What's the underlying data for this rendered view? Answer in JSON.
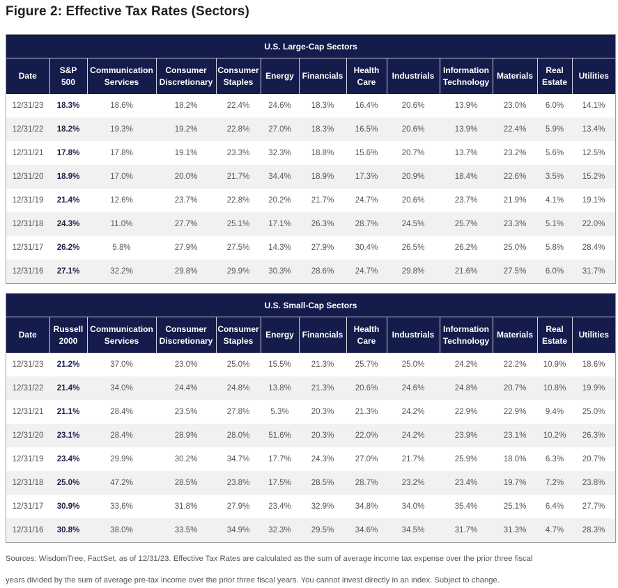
{
  "title": "Figure 2: Effective Tax Rates (Sectors)",
  "columns_common": [
    "Communication Services",
    "Consumer Discretionary",
    "Consumer Staples",
    "Energy",
    "Financials",
    "Health Care",
    "Industrials",
    "Information Technology",
    "Materials",
    "Real Estate",
    "Utilities"
  ],
  "large": {
    "caption": "U.S. Large-Cap Sectors",
    "headers": [
      [
        "Date"
      ],
      [
        "S&P",
        "500"
      ],
      [
        "Communication",
        "Services"
      ],
      [
        "Consumer",
        "Discretionary"
      ],
      [
        "Consumer",
        "Staples"
      ],
      [
        "Energy"
      ],
      [
        "Financials"
      ],
      [
        "Health",
        "Care"
      ],
      [
        "Industrials"
      ],
      [
        "Information",
        "Technology"
      ],
      [
        "Materials"
      ],
      [
        "Real",
        "Estate"
      ],
      [
        "Utilities"
      ]
    ],
    "rows": [
      [
        "12/31/23",
        "18.3%",
        "18.6%",
        "18.2%",
        "22.4%",
        "24.6%",
        "18.3%",
        "16.4%",
        "20.6%",
        "13.9%",
        "23.0%",
        "6.0%",
        "14.1%"
      ],
      [
        "12/31/22",
        "18.2%",
        "19.3%",
        "19.2%",
        "22.8%",
        "27.0%",
        "18.3%",
        "16.5%",
        "20.6%",
        "13.9%",
        "22.4%",
        "5.9%",
        "13.4%"
      ],
      [
        "12/31/21",
        "17.8%",
        "17.8%",
        "19.1%",
        "23.3%",
        "32.3%",
        "18.8%",
        "15.6%",
        "20.7%",
        "13.7%",
        "23.2%",
        "5.6%",
        "12.5%"
      ],
      [
        "12/31/20",
        "18.9%",
        "17.0%",
        "20.0%",
        "21.7%",
        "34.4%",
        "18.9%",
        "17.3%",
        "20.9%",
        "18.4%",
        "22.6%",
        "3.5%",
        "15.2%"
      ],
      [
        "12/31/19",
        "21.4%",
        "12.6%",
        "23.7%",
        "22.8%",
        "20.2%",
        "21.7%",
        "24.7%",
        "20.6%",
        "23.7%",
        "21.9%",
        "4.1%",
        "19.1%"
      ],
      [
        "12/31/18",
        "24.3%",
        "11.0%",
        "27.7%",
        "25.1%",
        "17.1%",
        "26.3%",
        "28.7%",
        "24.5%",
        "25.7%",
        "23.3%",
        "5.1%",
        "22.0%"
      ],
      [
        "12/31/17",
        "26.2%",
        "5.8%",
        "27.9%",
        "27.5%",
        "14.3%",
        "27.9%",
        "30.4%",
        "26.5%",
        "26.2%",
        "25.0%",
        "5.8%",
        "28.4%"
      ],
      [
        "12/31/16",
        "27.1%",
        "32.2%",
        "29.8%",
        "29.9%",
        "30.3%",
        "28.6%",
        "24.7%",
        "29.8%",
        "21.6%",
        "27.5%",
        "6.0%",
        "31.7%"
      ]
    ]
  },
  "small": {
    "caption": "U.S. Small-Cap Sectors",
    "headers": [
      [
        "Date"
      ],
      [
        "Russell",
        "2000"
      ],
      [
        "Communication",
        "Services"
      ],
      [
        "Consumer",
        "Discretionary"
      ],
      [
        "Consumer",
        "Staples"
      ],
      [
        "Energy"
      ],
      [
        "Financials"
      ],
      [
        "Health",
        "Care"
      ],
      [
        "Industrials"
      ],
      [
        "Information",
        "Technology"
      ],
      [
        "Materials"
      ],
      [
        "Real",
        "Estate"
      ],
      [
        "Utilities"
      ]
    ],
    "rows": [
      [
        "12/31/23",
        "21.2%",
        "37.0%",
        "23.0%",
        "25.0%",
        "15.5%",
        "21.3%",
        "25.7%",
        "25.0%",
        "24.2%",
        "22.2%",
        "10.9%",
        "18.6%"
      ],
      [
        "12/31/22",
        "21.4%",
        "34.0%",
        "24.4%",
        "24.8%",
        "13.8%",
        "21.3%",
        "20.6%",
        "24.6%",
        "24.8%",
        "20.7%",
        "10.8%",
        "19.9%"
      ],
      [
        "12/31/21",
        "21.1%",
        "28.4%",
        "23.5%",
        "27.8%",
        "5.3%",
        "20.3%",
        "21.3%",
        "24.2%",
        "22.9%",
        "22.9%",
        "9.4%",
        "25.0%"
      ],
      [
        "12/31/20",
        "23.1%",
        "28.4%",
        "28.9%",
        "28.0%",
        "51.6%",
        "20.3%",
        "22.0%",
        "24.2%",
        "23.9%",
        "23.1%",
        "10.2%",
        "26.3%"
      ],
      [
        "12/31/19",
        "23.4%",
        "29.9%",
        "30.2%",
        "34.7%",
        "17.7%",
        "24.3%",
        "27.0%",
        "21.7%",
        "25.9%",
        "18.0%",
        "6.3%",
        "20.7%"
      ],
      [
        "12/31/18",
        "25.0%",
        "47.2%",
        "28.5%",
        "23.8%",
        "17.5%",
        "28.5%",
        "28.7%",
        "23.2%",
        "23.4%",
        "19.7%",
        "7.2%",
        "23.8%"
      ],
      [
        "12/31/17",
        "30.9%",
        "33.6%",
        "31.8%",
        "27.9%",
        "23.4%",
        "32.9%",
        "34.8%",
        "34.0%",
        "35.4%",
        "25.1%",
        "6.4%",
        "27.7%"
      ],
      [
        "12/31/16",
        "30.8%",
        "38.0%",
        "33.5%",
        "34.9%",
        "32.3%",
        "29.5%",
        "34.6%",
        "34.5%",
        "31.7%",
        "31.3%",
        "4.7%",
        "28.3%"
      ]
    ]
  },
  "footnote": {
    "line1": "Sources: WisdomTree, FactSet, as of 12/31/23. Effective Tax Rates are calculated as the sum of average income tax expense over the prior three fiscal",
    "line2": "years divided by the sum of average pre-tax income over the prior three fiscal years. You cannot invest directly in an index. Subject to change."
  },
  "colors": {
    "header_bg": "#141c4b",
    "stripe": "#f1f1f1",
    "bold_text": "#1e1e4a"
  }
}
